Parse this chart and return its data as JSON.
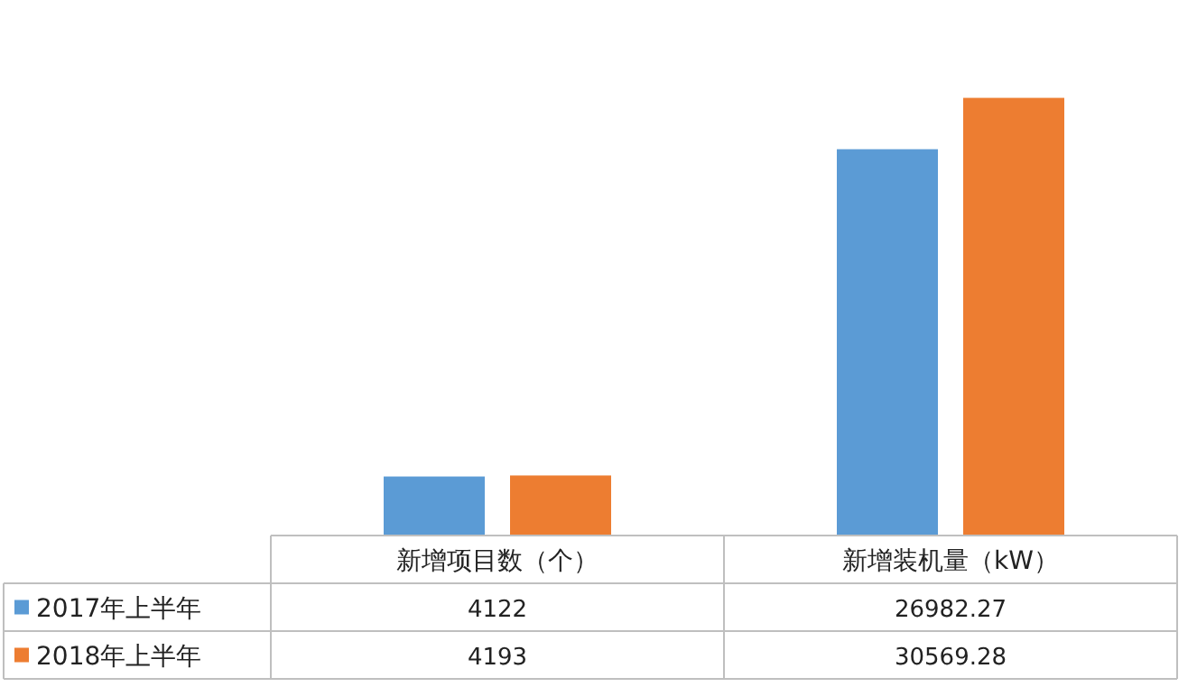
{
  "chart_data": {
    "type": "bar",
    "categories": [
      "新增项目数（个）",
      "新增装机量（kW）"
    ],
    "series": [
      {
        "name": "2017年上半年",
        "color": "#5b9bd5",
        "values": [
          4122,
          26982.27
        ]
      },
      {
        "name": "2018年上半年",
        "color": "#ed7d31",
        "values": [
          4193,
          30569.28
        ]
      }
    ],
    "data_labels": true,
    "legend": "bottom left"
  }
}
